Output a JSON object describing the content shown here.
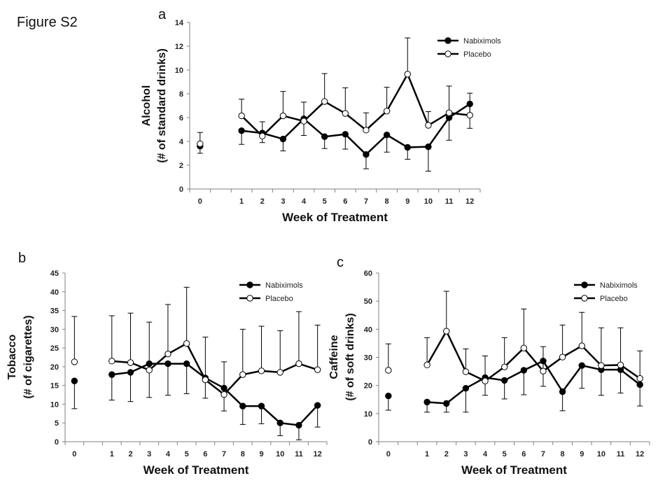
{
  "figure_title": "Figure S2",
  "chart_data": [
    {
      "panel": "a",
      "type": "line",
      "title": "",
      "xlabel": "Week of Treatment",
      "ylabel": [
        "Alcohol",
        "(# of standard drinks)"
      ],
      "x": [
        "0",
        "1",
        "2",
        "3",
        "4",
        "5",
        "6",
        "7",
        "8",
        "9",
        "10",
        "11",
        "12"
      ],
      "yticks": [
        0,
        2,
        4,
        6,
        8,
        10,
        12,
        14
      ],
      "ylim": [
        0,
        14
      ],
      "grid": false,
      "legend_position": "top-right",
      "series": [
        {
          "name": "Nabiximols",
          "marker": "filled-circle",
          "values": [
            3.6,
            4.9,
            4.7,
            4.2,
            5.9,
            4.4,
            4.6,
            2.9,
            4.55,
            3.5,
            3.55,
            6.0,
            7.15
          ],
          "error_direction": "down",
          "error_bound": [
            3.0,
            3.75,
            3.9,
            3.2,
            4.5,
            3.4,
            3.35,
            1.7,
            3.1,
            2.5,
            1.5,
            4.1,
            5.1
          ]
        },
        {
          "name": "Placebo",
          "marker": "open-circle",
          "values": [
            3.8,
            6.15,
            4.45,
            6.15,
            5.7,
            7.35,
            6.35,
            4.95,
            6.55,
            9.65,
            5.35,
            6.4,
            6.2
          ],
          "error_direction": "up",
          "error_bound": [
            4.75,
            7.55,
            5.65,
            8.2,
            7.3,
            9.7,
            8.5,
            6.4,
            8.55,
            12.7,
            6.5,
            8.65,
            8.05
          ]
        }
      ]
    },
    {
      "panel": "b",
      "type": "line",
      "title": "",
      "xlabel": "Week of Treatment",
      "ylabel": [
        "Tobacco",
        "(# of cigarettes)"
      ],
      "x": [
        "0",
        "1",
        "2",
        "3",
        "4",
        "5",
        "6",
        "7",
        "8",
        "9",
        "10",
        "11",
        "12"
      ],
      "yticks": [
        0,
        5,
        10,
        15,
        20,
        25,
        30,
        35,
        40,
        45
      ],
      "ylim": [
        0,
        45
      ],
      "grid": false,
      "legend_position": "top-right",
      "series": [
        {
          "name": "Nabiximols",
          "marker": "filled-circle",
          "values": [
            16.2,
            17.9,
            18.5,
            20.8,
            20.8,
            20.8,
            17.0,
            14.3,
            9.5,
            9.5,
            5.0,
            4.4,
            9.7
          ],
          "error_direction": "down",
          "error_bound": [
            8.8,
            11.1,
            10.7,
            11.8,
            12.4,
            12.8,
            11.6,
            8.2,
            4.6,
            4.8,
            1.6,
            0.5,
            3.9
          ]
        },
        {
          "name": "Placebo",
          "marker": "open-circle",
          "values": [
            21.3,
            21.5,
            21.1,
            19.1,
            23.4,
            26.2,
            16.5,
            12.6,
            17.9,
            18.9,
            18.5,
            20.8,
            19.2
          ],
          "error_direction": "up",
          "error_bound": [
            33.4,
            33.6,
            34.3,
            31.9,
            36.6,
            41.2,
            27.9,
            21.3,
            30.0,
            30.8,
            29.6,
            34.7,
            31.1
          ]
        }
      ]
    },
    {
      "panel": "c",
      "type": "line",
      "title": "",
      "xlabel": "Week of Treatment",
      "ylabel": [
        "Caffeine",
        "(# of soft drinks)"
      ],
      "x": [
        "0",
        "1",
        "2",
        "3",
        "4",
        "5",
        "6",
        "7",
        "8",
        "9",
        "10",
        "11",
        "12"
      ],
      "yticks": [
        0,
        10,
        20,
        30,
        40,
        50,
        60
      ],
      "ylim": [
        0,
        60
      ],
      "grid": false,
      "legend_position": "top-right",
      "series": [
        {
          "name": "Nabiximols",
          "marker": "filled-circle",
          "values": [
            16.3,
            14.1,
            13.6,
            19.0,
            22.8,
            21.8,
            25.4,
            28.7,
            17.8,
            27.1,
            25.6,
            25.6,
            20.3
          ],
          "error_direction": "down",
          "error_bound": [
            11.2,
            10.5,
            10.5,
            10.5,
            16.5,
            15.2,
            16.7,
            19.7,
            11.0,
            19.0,
            16.5,
            17.3,
            12.7
          ]
        },
        {
          "name": "Placebo",
          "marker": "open-circle",
          "values": [
            25.4,
            27.3,
            39.3,
            24.9,
            21.6,
            26.6,
            33.3,
            25.1,
            30.1,
            34.1,
            27.1,
            27.3,
            22.5
          ],
          "error_direction": "up",
          "error_bound": [
            34.8,
            37.0,
            53.5,
            33.0,
            30.5,
            37.0,
            47.2,
            33.8,
            41.5,
            46.0,
            40.5,
            40.5,
            32.3
          ]
        }
      ]
    }
  ]
}
